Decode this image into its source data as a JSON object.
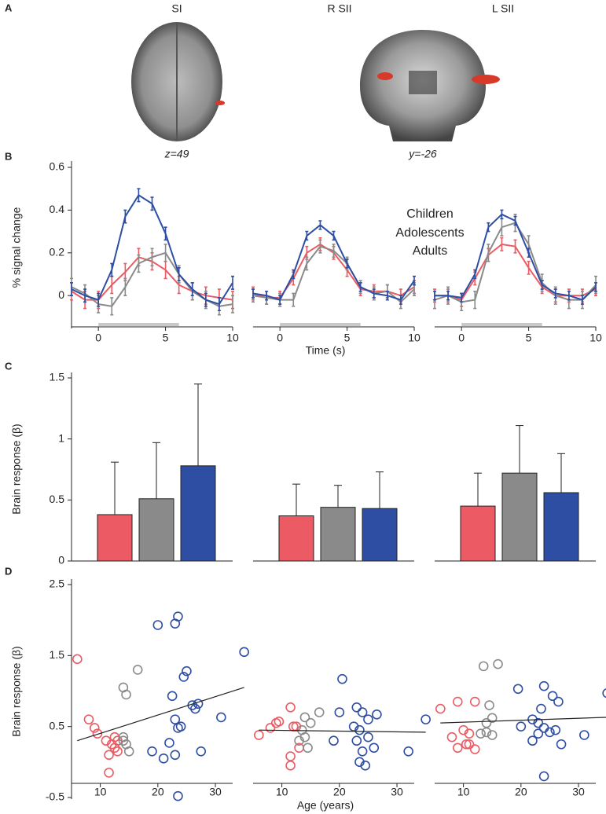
{
  "figure": {
    "panel_labels": [
      "A",
      "B",
      "C",
      "D"
    ],
    "regions": [
      "SI",
      "R SII",
      "L SII"
    ],
    "slice_labels": [
      "z=49",
      "y=-26"
    ]
  },
  "groups": [
    {
      "name": "Children",
      "color": "#ec5b63"
    },
    {
      "name": "Adolescents",
      "color": "#8a8a8a"
    },
    {
      "name": "Adults",
      "color": "#2e4ea3"
    }
  ],
  "chart_data": [
    {
      "type": "line",
      "ylabel": "% signal change",
      "xlabel": "Time (s)",
      "x": [
        -2,
        -1,
        0,
        1,
        2,
        3,
        4,
        5,
        6,
        7,
        8,
        9,
        10
      ],
      "xlim": [
        -2,
        10
      ],
      "xticks": [
        0,
        5,
        10
      ],
      "ylim": [
        -0.15,
        0.6
      ],
      "yticks": [
        0,
        0.2,
        0.4,
        0.6
      ],
      "stimulus": [
        0,
        6
      ],
      "panels": [
        {
          "series": [
            {
              "values": [
                0.02,
                -0.02,
                -0.02,
                0.05,
                0.11,
                0.18,
                0.16,
                0.12,
                0.05,
                0.02,
                0.0,
                -0.01,
                -0.02
              ],
              "error": 0.04
            },
            {
              "values": [
                0.04,
                0.01,
                -0.04,
                -0.05,
                0.04,
                0.15,
                0.18,
                0.2,
                0.1,
                0.02,
                -0.02,
                -0.05,
                -0.04
              ],
              "error": 0.04
            },
            {
              "values": [
                0.03,
                0.0,
                -0.02,
                0.12,
                0.37,
                0.47,
                0.43,
                0.29,
                0.1,
                0.03,
                -0.02,
                -0.04,
                0.06
              ],
              "error": 0.03
            }
          ]
        },
        {
          "series": [
            {
              "values": [
                0.01,
                -0.01,
                -0.01,
                0.08,
                0.2,
                0.24,
                0.2,
                0.12,
                0.03,
                0.02,
                0.02,
                0.0,
                0.04
              ],
              "error": 0.03
            },
            {
              "values": [
                0.0,
                -0.01,
                -0.02,
                -0.02,
                0.15,
                0.23,
                0.21,
                0.15,
                0.04,
                0.01,
                0.02,
                -0.03,
                0.03
              ],
              "error": 0.03
            },
            {
              "values": [
                0.01,
                0.0,
                -0.02,
                0.1,
                0.28,
                0.33,
                0.28,
                0.15,
                0.04,
                0.01,
                0.0,
                -0.02,
                0.07
              ],
              "error": 0.02
            }
          ]
        },
        {
          "series": [
            {
              "values": [
                0.0,
                0.0,
                -0.02,
                0.08,
                0.19,
                0.24,
                0.23,
                0.13,
                0.04,
                0.0,
                0.0,
                0.0,
                0.03
              ],
              "error": 0.03
            },
            {
              "values": [
                -0.02,
                0.0,
                -0.03,
                -0.02,
                0.2,
                0.32,
                0.34,
                0.24,
                0.06,
                0.0,
                -0.02,
                -0.02,
                0.05
              ],
              "error": 0.04
            },
            {
              "values": [
                0.0,
                0.0,
                -0.01,
                0.1,
                0.32,
                0.38,
                0.35,
                0.2,
                0.05,
                0.01,
                0.0,
                -0.02,
                0.04
              ],
              "error": 0.02
            }
          ]
        }
      ]
    },
    {
      "type": "bar",
      "ylabel": "Brain response (β)",
      "ylim": [
        0,
        1.5
      ],
      "yticks": [
        0,
        0.5,
        1,
        1.5
      ],
      "panels": [
        {
          "values": [
            0.38,
            0.51,
            0.78
          ],
          "errors": [
            0.43,
            0.46,
            0.67
          ]
        },
        {
          "values": [
            0.37,
            0.44,
            0.43
          ],
          "errors": [
            0.26,
            0.18,
            0.3
          ]
        },
        {
          "values": [
            0.45,
            0.72,
            0.56
          ],
          "errors": [
            0.27,
            0.39,
            0.32
          ]
        }
      ]
    },
    {
      "type": "scatter",
      "ylabel": "Brain response (β)",
      "xlabel": "Age (years)",
      "xlim": [
        5,
        33
      ],
      "xticks": [
        10,
        20,
        30
      ],
      "ylim": [
        -0.5,
        2.5
      ],
      "yticks": [
        -0.5,
        0.5,
        1.5,
        2.5
      ],
      "panels": [
        {
          "series": [
            {
              "x": [
                6,
                8,
                9,
                9.5,
                11,
                11.5,
                11.5,
                12,
                12.5,
                13,
                13,
                12.5
              ],
              "y": [
                1.45,
                0.6,
                0.48,
                0.4,
                0.3,
                0.1,
                -0.15,
                0.25,
                0.2,
                0.3,
                0.15,
                0.35
              ]
            },
            {
              "x": [
                14,
                14.5,
                16.5,
                14,
                14.5,
                15,
                14
              ],
              "y": [
                1.05,
                0.95,
                1.3,
                0.35,
                0.25,
                0.15,
                0.3
              ]
            },
            {
              "x": [
                20,
                23,
                23.5,
                24.5,
                25,
                26,
                26.5,
                27,
                22.5,
                23,
                23.5,
                24,
                22,
                23,
                21,
                19,
                27.5,
                31,
                35,
                23.5
              ],
              "y": [
                1.93,
                1.95,
                2.05,
                1.2,
                1.28,
                0.8,
                0.75,
                0.82,
                0.93,
                0.6,
                0.48,
                0.5,
                0.27,
                0.1,
                0.05,
                0.15,
                0.15,
                0.63,
                1.55,
                -0.48
              ]
            }
          ],
          "fit": {
            "x": [
              6,
              35
            ],
            "y": [
              0.3,
              1.05
            ]
          }
        },
        {
          "series": [
            {
              "x": [
                6,
                8,
                9,
                9.5,
                11.5,
                12,
                12.5,
                13,
                11.5,
                11.5
              ],
              "y": [
                0.38,
                0.48,
                0.55,
                0.57,
                0.77,
                0.5,
                0.5,
                0.2,
                0.08,
                -0.05
              ]
            },
            {
              "x": [
                14,
                15,
                16.5,
                13.5,
                14,
                13,
                14.5
              ],
              "y": [
                0.63,
                0.55,
                0.7,
                0.45,
                0.35,
                0.3,
                0.2
              ]
            },
            {
              "x": [
                20.5,
                20,
                23,
                24,
                25,
                26.5,
                22.5,
                23.5,
                25,
                23,
                24,
                26,
                23.5,
                24.5,
                32,
                35,
                19
              ],
              "y": [
                1.17,
                0.7,
                0.77,
                0.7,
                0.6,
                0.67,
                0.5,
                0.45,
                0.35,
                0.3,
                0.15,
                0.2,
                0.0,
                -0.05,
                0.15,
                0.6,
                0.3
              ]
            }
          ],
          "fit": {
            "x": [
              6,
              35
            ],
            "y": [
              0.45,
              0.42
            ]
          }
        },
        {
          "series": [
            {
              "x": [
                6,
                9,
                12,
                8,
                10,
                11,
                10.5,
                9,
                11,
                12
              ],
              "y": [
                0.75,
                0.85,
                0.85,
                0.35,
                0.45,
                0.4,
                0.25,
                0.2,
                0.25,
                0.18
              ]
            },
            {
              "x": [
                13.5,
                16,
                14.5,
                15,
                14,
                13,
                14,
                15
              ],
              "y": [
                1.35,
                1.38,
                0.8,
                0.62,
                0.55,
                0.4,
                0.42,
                0.38
              ]
            },
            {
              "x": [
                19.5,
                24,
                25.5,
                26.5,
                23.5,
                20,
                22,
                23,
                24,
                25,
                23,
                22,
                26,
                27,
                24,
                31,
                35
              ],
              "y": [
                1.03,
                1.07,
                0.93,
                0.85,
                0.75,
                0.5,
                0.6,
                0.55,
                0.48,
                0.42,
                0.4,
                0.3,
                0.45,
                0.25,
                -0.2,
                0.38,
                0.97
              ]
            }
          ],
          "fit": {
            "x": [
              6,
              35
            ],
            "y": [
              0.55,
              0.63
            ]
          }
        }
      ]
    }
  ]
}
